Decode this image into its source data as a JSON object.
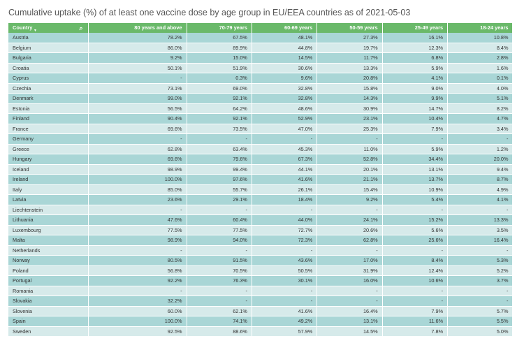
{
  "title": "Cumulative uptake (%) of at least one vaccine dose by age group in EU/EEA countries as of 2021-05-03",
  "colors": {
    "header": "#6ab96a",
    "row_odd": "#a9d6d6",
    "row_even": "#d6eaea"
  },
  "chart_data": {
    "type": "table",
    "columns": [
      "Country",
      "80 years and above",
      "70-79 years",
      "60-69 years",
      "50-59 years",
      "25-49 years",
      "18-24 years"
    ],
    "rows": [
      [
        "Austria",
        "78.2%",
        "67.5%",
        "48.1%",
        "27.3%",
        "16.1%",
        "10.8%"
      ],
      [
        "Belgium",
        "86.0%",
        "89.9%",
        "44.8%",
        "19.7%",
        "12.3%",
        "8.4%"
      ],
      [
        "Bulgaria",
        "9.2%",
        "15.0%",
        "14.5%",
        "11.7%",
        "6.8%",
        "2.8%"
      ],
      [
        "Croatia",
        "50.1%",
        "51.9%",
        "30.6%",
        "13.3%",
        "5.9%",
        "1.6%"
      ],
      [
        "Cyprus",
        "-",
        "0.3%",
        "9.6%",
        "20.8%",
        "4.1%",
        "0.1%"
      ],
      [
        "Czechia",
        "73.1%",
        "69.0%",
        "32.8%",
        "15.8%",
        "9.0%",
        "4.0%"
      ],
      [
        "Denmark",
        "99.0%",
        "92.1%",
        "32.8%",
        "14.3%",
        "9.9%",
        "5.1%"
      ],
      [
        "Estonia",
        "56.5%",
        "64.2%",
        "48.6%",
        "30.9%",
        "14.7%",
        "8.2%"
      ],
      [
        "Finland",
        "90.4%",
        "92.1%",
        "52.9%",
        "23.1%",
        "10.4%",
        "4.7%"
      ],
      [
        "France",
        "69.6%",
        "73.5%",
        "47.0%",
        "25.3%",
        "7.9%",
        "3.4%"
      ],
      [
        "Germany",
        "-",
        "-",
        "-",
        "-",
        "-",
        "-"
      ],
      [
        "Greece",
        "62.8%",
        "63.4%",
        "45.3%",
        "11.0%",
        "5.9%",
        "1.2%"
      ],
      [
        "Hungary",
        "69.6%",
        "79.6%",
        "67.3%",
        "52.8%",
        "34.4%",
        "20.0%"
      ],
      [
        "Iceland",
        "98.9%",
        "99.4%",
        "44.1%",
        "20.1%",
        "13.1%",
        "9.4%"
      ],
      [
        "Ireland",
        "100.0%",
        "97.6%",
        "41.6%",
        "21.1%",
        "13.7%",
        "8.7%"
      ],
      [
        "Italy",
        "85.0%",
        "55.7%",
        "26.1%",
        "15.4%",
        "10.9%",
        "4.9%"
      ],
      [
        "Latvia",
        "23.6%",
        "29.1%",
        "18.4%",
        "9.2%",
        "5.4%",
        "4.1%"
      ],
      [
        "Liechtenstein",
        "-",
        "-",
        "-",
        "-",
        "-",
        "-"
      ],
      [
        "Lithuania",
        "47.6%",
        "60.4%",
        "44.0%",
        "24.1%",
        "15.2%",
        "13.3%"
      ],
      [
        "Luxembourg",
        "77.5%",
        "77.5%",
        "72.7%",
        "20.6%",
        "5.6%",
        "3.5%"
      ],
      [
        "Malta",
        "98.9%",
        "94.0%",
        "72.3%",
        "62.8%",
        "25.6%",
        "16.4%"
      ],
      [
        "Netherlands",
        "-",
        "-",
        "-",
        "-",
        "-",
        "-"
      ],
      [
        "Norway",
        "80.5%",
        "91.5%",
        "43.6%",
        "17.0%",
        "8.4%",
        "5.3%"
      ],
      [
        "Poland",
        "56.8%",
        "70.5%",
        "50.5%",
        "31.9%",
        "12.4%",
        "5.2%"
      ],
      [
        "Portugal",
        "92.2%",
        "76.3%",
        "30.1%",
        "16.0%",
        "10.6%",
        "3.7%"
      ],
      [
        "Romania",
        "-",
        "-",
        "-",
        "-",
        "-",
        "-"
      ],
      [
        "Slovakia",
        "32.2%",
        "-",
        "-",
        "-",
        "-",
        "-"
      ],
      [
        "Slovenia",
        "60.0%",
        "62.1%",
        "41.6%",
        "16.4%",
        "7.9%",
        "5.7%"
      ],
      [
        "Spain",
        "100.0%",
        "74.1%",
        "49.2%",
        "13.1%",
        "11.6%",
        "5.5%"
      ],
      [
        "Sweden",
        "92.5%",
        "88.6%",
        "57.9%",
        "14.5%",
        "7.8%",
        "5.0%"
      ]
    ]
  }
}
